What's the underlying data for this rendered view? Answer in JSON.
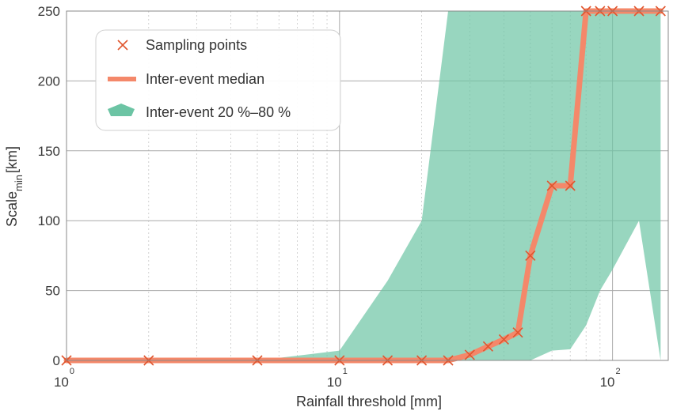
{
  "chart_data": {
    "type": "line",
    "xscale": "log",
    "xlim": [
      1,
      160
    ],
    "ylim": [
      0,
      250
    ],
    "grid": true,
    "legend_position": "top-left",
    "xlabel": "Rainfall threshold [mm]",
    "ylabel_main": "Scale",
    "ylabel_sub": "min",
    "ylabel_unit": "[km]",
    "x_ticks": [
      {
        "base": "10",
        "exp": "0",
        "value": 1
      },
      {
        "base": "10",
        "exp": "1",
        "value": 10
      },
      {
        "base": "10",
        "exp": "2",
        "value": 100
      }
    ],
    "y_ticks": [
      {
        "label": "0",
        "value": 0
      },
      {
        "label": "50",
        "value": 50
      },
      {
        "label": "100",
        "value": 100
      },
      {
        "label": "150",
        "value": 150
      },
      {
        "label": "200",
        "value": 200
      },
      {
        "label": "250",
        "value": 250
      }
    ],
    "series": [
      {
        "name": "Sampling points",
        "kind": "markers",
        "marker": "x",
        "color": "#e0562f",
        "x": [
          1,
          2,
          5,
          10,
          15,
          20,
          25,
          30,
          35,
          40,
          45,
          50,
          60,
          70,
          80,
          90,
          100,
          125,
          150
        ],
        "y": [
          0,
          0,
          0,
          0,
          0,
          0,
          0,
          4,
          10,
          15,
          20,
          75,
          125,
          125,
          250,
          250,
          250,
          250,
          250
        ]
      },
      {
        "name": "Inter-event median",
        "kind": "line",
        "color": "#f4886a",
        "x": [
          1,
          2,
          5,
          10,
          15,
          20,
          25,
          30,
          35,
          40,
          45,
          50,
          60,
          70,
          80,
          90,
          100,
          125,
          150
        ],
        "y": [
          0,
          0,
          0,
          0,
          0,
          0,
          0,
          4,
          10,
          15,
          20,
          75,
          125,
          125,
          250,
          250,
          250,
          250,
          250
        ]
      },
      {
        "name": "Inter-event 20 %–80 %",
        "kind": "band",
        "color": "#6cc4a4",
        "upper": {
          "x": [
            1,
            2,
            5,
            10,
            15,
            20,
            25,
            150
          ],
          "y": [
            0,
            0,
            0,
            7,
            57,
            100,
            250,
            250
          ]
        },
        "lower": {
          "x": [
            1,
            45,
            50,
            60,
            70,
            80,
            90,
            100,
            125,
            150
          ],
          "y": [
            0,
            0,
            0,
            7,
            8,
            25,
            50,
            65,
            100,
            0
          ]
        }
      }
    ]
  }
}
